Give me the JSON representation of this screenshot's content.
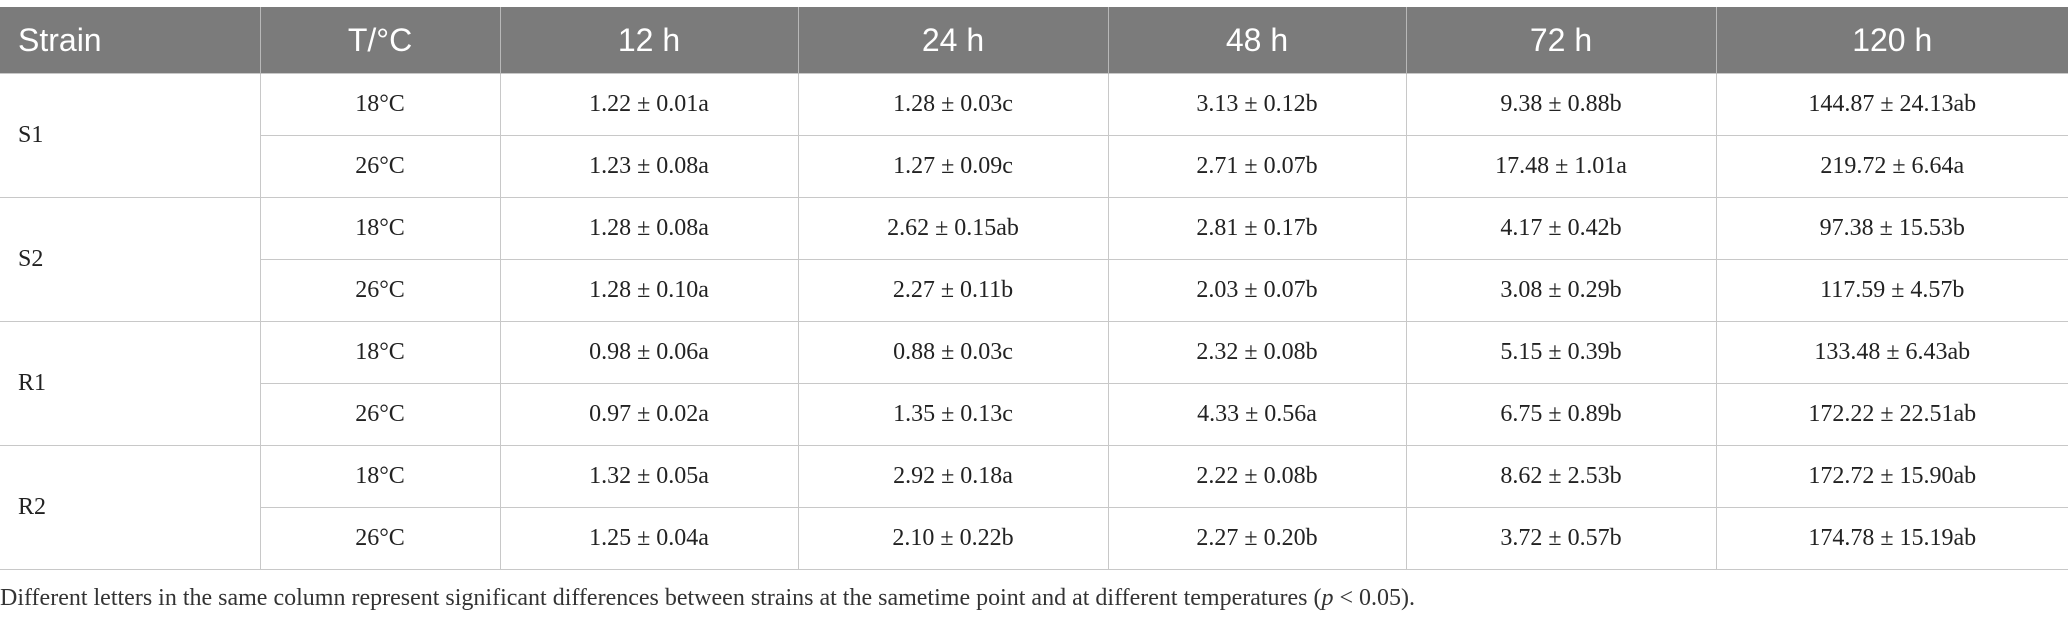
{
  "table": {
    "header": [
      "Strain",
      "T/°C",
      "12 h",
      "24 h",
      "48 h",
      "72 h",
      "120 h"
    ],
    "groups": [
      {
        "strain": "S1",
        "rows": [
          [
            "18°C",
            "1.22 ± 0.01a",
            "1.28 ± 0.03c",
            "3.13 ± 0.12b",
            "9.38 ± 0.88b",
            "144.87 ± 24.13ab"
          ],
          [
            "26°C",
            "1.23 ± 0.08a",
            "1.27 ± 0.09c",
            "2.71 ± 0.07b",
            "17.48 ± 1.01a",
            "219.72 ± 6.64a"
          ]
        ]
      },
      {
        "strain": "S2",
        "rows": [
          [
            "18°C",
            "1.28 ± 0.08a",
            "2.62 ± 0.15ab",
            "2.81 ± 0.17b",
            "4.17 ± 0.42b",
            "97.38 ± 15.53b"
          ],
          [
            "26°C",
            "1.28 ± 0.10a",
            "2.27 ± 0.11b",
            "2.03 ± 0.07b",
            "3.08 ± 0.29b",
            "117.59 ± 4.57b"
          ]
        ]
      },
      {
        "strain": "R1",
        "rows": [
          [
            "18°C",
            "0.98 ± 0.06a",
            "0.88 ± 0.03c",
            "2.32 ± 0.08b",
            "5.15 ± 0.39b",
            "133.48 ± 6.43ab"
          ],
          [
            "26°C",
            "0.97 ± 0.02a",
            "1.35 ± 0.13c",
            "4.33 ± 0.56a",
            "6.75 ± 0.89b",
            "172.22 ± 22.51ab"
          ]
        ]
      },
      {
        "strain": "R2",
        "rows": [
          [
            "18°C",
            "1.32 ± 0.05a",
            "2.92 ± 0.18a",
            "2.22 ± 0.08b",
            "8.62 ± 2.53b",
            "172.72 ± 15.90ab"
          ],
          [
            "26°C",
            "1.25 ± 0.04a",
            "2.10 ± 0.22b",
            "2.27 ± 0.20b",
            "3.72 ± 0.57b",
            "174.78 ± 15.19ab"
          ]
        ]
      }
    ],
    "footnote": [
      "Different letters in the same column represent significant differences between strains at the sametime point and at different temperatures (",
      "p",
      " < 0.05)."
    ]
  }
}
